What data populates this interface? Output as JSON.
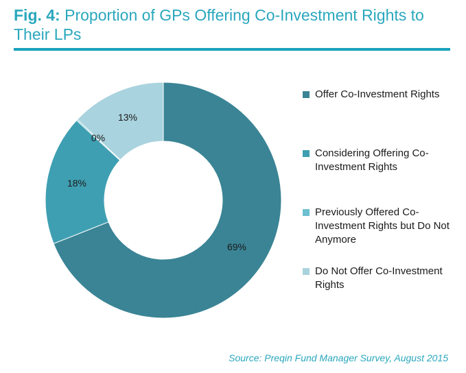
{
  "title": {
    "prefix": "Fig. 4:",
    "text": "Proportion of GPs Offering Co-Investment Rights to Their LPs"
  },
  "chart_data": {
    "type": "pie",
    "donut": true,
    "title": "Proportion of GPs Offering Co-Investment Rights to Their LPs",
    "categories": [
      "Offer Co-Investment Rights",
      "Considering Offering Co-Investment Rights",
      "Previously Offered Co-Investment Rights but Do Not Anymore",
      "Do Not Offer Co-Investment Rights"
    ],
    "values": [
      69,
      18,
      0,
      13
    ],
    "labels": [
      "69%",
      "18%",
      "0%",
      "13%"
    ],
    "colors": [
      "#3a8495",
      "#3f9fb2",
      "#6cc0d0",
      "#a9d3de"
    ],
    "legend_position": "right"
  },
  "legend": {
    "items": [
      {
        "label": "Offer Co-Investment Rights",
        "color": "#3a8495"
      },
      {
        "label": "Considering Offering Co-Investment Rights",
        "color": "#3f9fb2"
      },
      {
        "label": "Previously Offered Co-Investment Rights but Do Not Anymore",
        "color": "#6cc0d0"
      },
      {
        "label": "Do Not Offer Co-Investment Rights",
        "color": "#a9d3de"
      }
    ]
  },
  "source": "Source: Preqin Fund Manager Survey, August 2015"
}
